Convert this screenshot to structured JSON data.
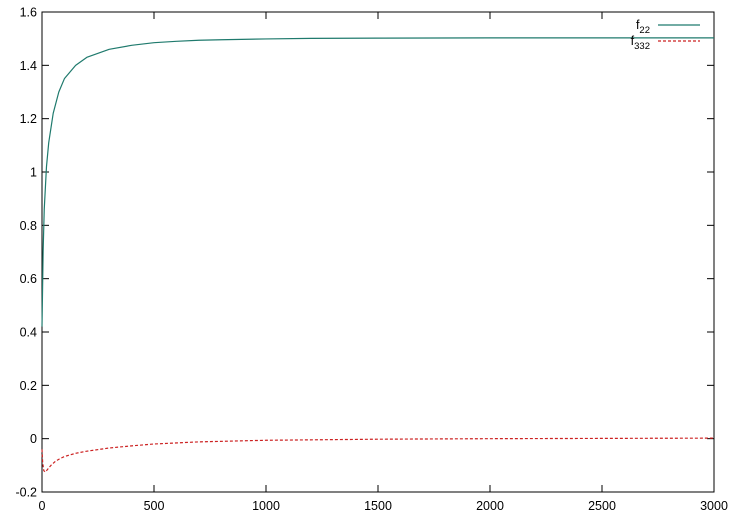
{
  "chart_data": {
    "type": "line",
    "title": "",
    "xlabel": "",
    "ylabel": "",
    "xlim": [
      0,
      3000
    ],
    "ylim": [
      -0.2,
      1.6
    ],
    "grid": false,
    "legend_position": "top-right",
    "x_ticks": [
      {
        "value": 0,
        "label": "0"
      },
      {
        "value": 500,
        "label": "500"
      },
      {
        "value": 1000,
        "label": "1000"
      },
      {
        "value": 1500,
        "label": "1500"
      },
      {
        "value": 2000,
        "label": "2000"
      },
      {
        "value": 2500,
        "label": "2500"
      },
      {
        "value": 3000,
        "label": "3000"
      }
    ],
    "y_ticks": [
      {
        "value": -0.2,
        "label": "-0.2"
      },
      {
        "value": 0,
        "label": "0"
      },
      {
        "value": 0.2,
        "label": "0.2"
      },
      {
        "value": 0.4,
        "label": "0.4"
      },
      {
        "value": 0.6,
        "label": "0.6"
      },
      {
        "value": 0.8,
        "label": "0.8"
      },
      {
        "value": 1,
        "label": "1"
      },
      {
        "value": 1.2,
        "label": "1.2"
      },
      {
        "value": 1.4,
        "label": "1.4"
      },
      {
        "value": 1.6,
        "label": "1.6"
      }
    ],
    "series": [
      {
        "name": "f",
        "name_subscript": "22",
        "color": "#1f7a6d",
        "dash": "solid",
        "x": [
          0,
          5,
          10,
          20,
          30,
          50,
          75,
          100,
          150,
          200,
          300,
          400,
          500,
          600,
          700,
          800,
          1000,
          1200,
          1500,
          2000,
          2500,
          3000
        ],
        "y": [
          0.42,
          0.7,
          0.86,
          1.02,
          1.11,
          1.22,
          1.3,
          1.35,
          1.4,
          1.43,
          1.46,
          1.475,
          1.485,
          1.49,
          1.494,
          1.496,
          1.499,
          1.501,
          1.502,
          1.503,
          1.503,
          1.503
        ]
      },
      {
        "name": "f",
        "name_subscript": "332",
        "color": "#cc2222",
        "dash": "dashed",
        "x": [
          0,
          3,
          8,
          15,
          25,
          40,
          60,
          80,
          100,
          150,
          200,
          300,
          400,
          500,
          700,
          1000,
          1500,
          2000,
          2500,
          3000
        ],
        "y": [
          -0.04,
          -0.09,
          -0.12,
          -0.125,
          -0.115,
          -0.1,
          -0.085,
          -0.075,
          -0.067,
          -0.055,
          -0.047,
          -0.035,
          -0.027,
          -0.02,
          -0.012,
          -0.006,
          -0.002,
          0.0,
          0.001,
          0.002
        ]
      }
    ]
  }
}
